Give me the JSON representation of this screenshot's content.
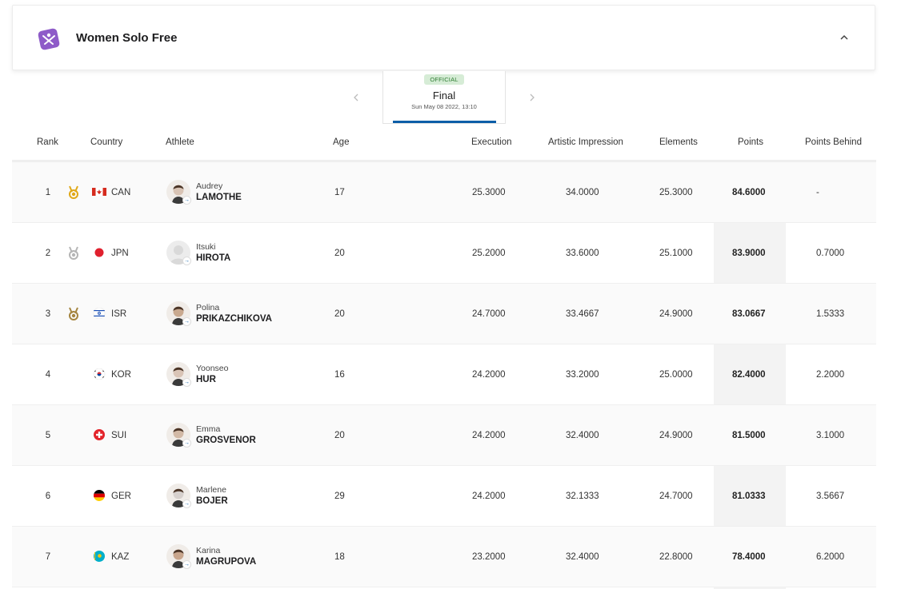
{
  "event": {
    "title": "Women Solo Free"
  },
  "phase": {
    "badge": "OFFICIAL",
    "name": "Final",
    "date": "Sun May 08 2022, 13:10"
  },
  "colors": {
    "brand_purple": "#8e5bc8",
    "official_green": "#2e7d32",
    "active_underline": "#0b5ea8",
    "gold": "#e0a818",
    "silver": "#b5b5b5",
    "bronze": "#a58540"
  },
  "table": {
    "headers": {
      "rank": "Rank",
      "country": "Country",
      "athlete": "Athlete",
      "age": "Age",
      "execution": "Execution",
      "artistic": "Artistic Impression",
      "elements": "Elements",
      "points": "Points",
      "behind": "Points Behind"
    },
    "rows": [
      {
        "rank": "1",
        "medal": "gold-medal-icon",
        "flag": "canada-flag-icon",
        "country": "CAN",
        "first": "Audrey",
        "last": "LAMOTHE",
        "age": "17",
        "execution": "25.3000",
        "artistic": "34.0000",
        "elements": "25.3000",
        "points": "84.6000",
        "behind": "-"
      },
      {
        "rank": "2",
        "medal": "silver-medal-icon",
        "flag": "japan-flag-icon",
        "country": "JPN",
        "first": "Itsuki",
        "last": "HIROTA",
        "age": "20",
        "execution": "25.2000",
        "artistic": "33.6000",
        "elements": "25.1000",
        "points": "83.9000",
        "behind": "0.7000"
      },
      {
        "rank": "3",
        "medal": "bronze-medal-icon",
        "flag": "israel-flag-icon",
        "country": "ISR",
        "first": "Polina",
        "last": "PRIKAZCHIKOVA",
        "age": "20",
        "execution": "24.7000",
        "artistic": "33.4667",
        "elements": "24.9000",
        "points": "83.0667",
        "behind": "1.5333"
      },
      {
        "rank": "4",
        "medal": "",
        "flag": "korea-flag-icon",
        "country": "KOR",
        "first": "Yoonseo",
        "last": "HUR",
        "age": "16",
        "execution": "24.2000",
        "artistic": "33.2000",
        "elements": "25.0000",
        "points": "82.4000",
        "behind": "2.2000"
      },
      {
        "rank": "5",
        "medal": "",
        "flag": "switzerland-flag-icon",
        "country": "SUI",
        "first": "Emma",
        "last": "GROSVENOR",
        "age": "20",
        "execution": "24.2000",
        "artistic": "32.4000",
        "elements": "24.9000",
        "points": "81.5000",
        "behind": "3.1000"
      },
      {
        "rank": "6",
        "medal": "",
        "flag": "germany-flag-icon",
        "country": "GER",
        "first": "Marlene",
        "last": "BOJER",
        "age": "29",
        "execution": "24.2000",
        "artistic": "32.1333",
        "elements": "24.7000",
        "points": "81.0333",
        "behind": "3.5667"
      },
      {
        "rank": "7",
        "medal": "",
        "flag": "kazakhstan-flag-icon",
        "country": "KAZ",
        "first": "Karina",
        "last": "MAGRUPOVA",
        "age": "18",
        "execution": "23.2000",
        "artistic": "32.4000",
        "elements": "22.8000",
        "points": "78.4000",
        "behind": "6.2000"
      }
    ]
  }
}
